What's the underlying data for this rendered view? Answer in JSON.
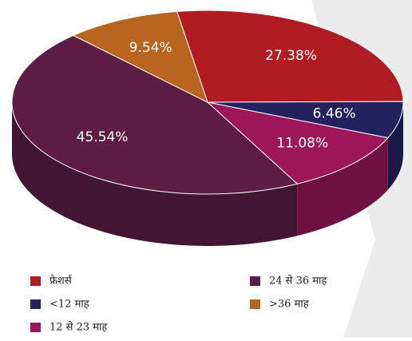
{
  "chart_data": {
    "type": "pie3d",
    "categories": [
      "फ्रेशर्स",
      "<12 माह",
      "12 से 23 माह",
      "24 से 36 माह",
      ">36 माह"
    ],
    "values": [
      27.38,
      6.46,
      11.08,
      45.54,
      9.54
    ],
    "value_labels": [
      "27.38%",
      "6.46%",
      "11.08%",
      "45.54%",
      "9.54%"
    ],
    "colors": [
      "#b01c22",
      "#24215f",
      "#9c1659",
      "#5e1d45",
      "#b8661f"
    ],
    "legend": "bottom"
  }
}
